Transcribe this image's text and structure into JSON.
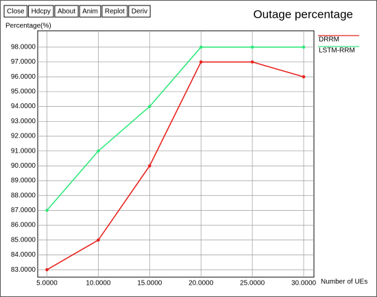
{
  "buttons": [
    "Close",
    "Hdcpy",
    "About",
    "Anim",
    "Replot",
    "Deriv"
  ],
  "chart_data": {
    "type": "line",
    "title": "Outage percentage",
    "y_label": "Percentage(%)",
    "x_label": "Number of UEs",
    "x": [
      5,
      10,
      15,
      20,
      25,
      30
    ],
    "series": [
      {
        "name": "DRRM",
        "color": "#e8201c",
        "values": [
          83,
          85,
          90,
          97,
          97,
          96
        ]
      },
      {
        "name": "LSTM-RRM",
        "color": "#2ee87a",
        "values": [
          87,
          91,
          94,
          98,
          98,
          98
        ]
      }
    ],
    "xlim": [
      4.1,
      31
    ],
    "ylim": [
      82.5,
      99.1
    ],
    "xticks": [
      {
        "value": 5,
        "label": "5.0000"
      },
      {
        "value": 10,
        "label": "10.0000"
      },
      {
        "value": 15,
        "label": "15.0000"
      },
      {
        "value": 20,
        "label": "20.0000"
      },
      {
        "value": 25,
        "label": "25.0000"
      },
      {
        "value": 30,
        "label": "30.0000"
      }
    ],
    "yticks": [
      {
        "value": 83,
        "label": "83.0000"
      },
      {
        "value": 84,
        "label": "84.0000"
      },
      {
        "value": 85,
        "label": "85.0000"
      },
      {
        "value": 86,
        "label": "86.0000"
      },
      {
        "value": 87,
        "label": "87.0000"
      },
      {
        "value": 88,
        "label": "88.0000"
      },
      {
        "value": 89,
        "label": "89.0000"
      },
      {
        "value": 90,
        "label": "90.0000"
      },
      {
        "value": 91,
        "label": "91.0000"
      },
      {
        "value": 92,
        "label": "92.0000"
      },
      {
        "value": 93,
        "label": "93.0000"
      },
      {
        "value": 94,
        "label": "94.0000"
      },
      {
        "value": 95,
        "label": "95.0000"
      },
      {
        "value": 96,
        "label": "96.0000"
      },
      {
        "value": 97,
        "label": "97.0000"
      },
      {
        "value": 98,
        "label": "98.0000"
      }
    ],
    "grid": true
  }
}
